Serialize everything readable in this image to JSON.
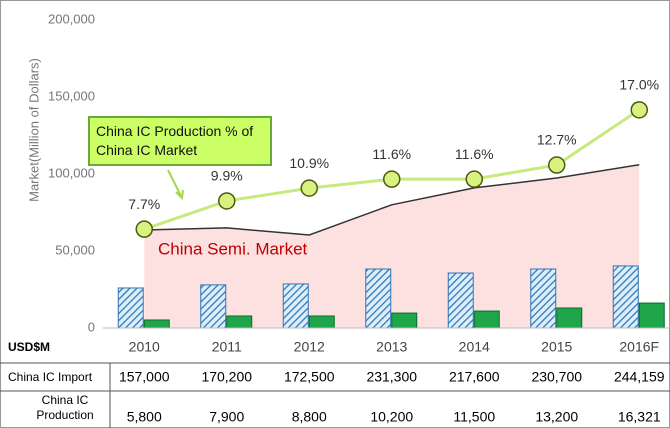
{
  "chart_data": {
    "type": "combo",
    "y_axis_label": "Market(Million of Dollars)",
    "categories": [
      "2010",
      "2011",
      "2012",
      "2013",
      "2014",
      "2015",
      "2016F"
    ],
    "ylim": [
      0,
      200000
    ],
    "yticks": [
      0,
      {
        "value": 50000,
        "label": "50,000"
      },
      {
        "value": 100000,
        "label": "100,000"
      },
      {
        "value": 150000,
        "label": "150,000"
      },
      {
        "value": 200000,
        "label": "200,000"
      }
    ],
    "y2lim": [
      0,
      24
    ],
    "series": [
      {
        "name": "China Semi. Market",
        "type": "area",
        "color": "#fde1e1",
        "values": [
          63600,
          65000,
          60400,
          80000,
          91000,
          97400,
          106000
        ]
      },
      {
        "type": "bar",
        "color": "#2e75b6",
        "values": [
          26000,
          28000,
          28600,
          38300,
          35700,
          38300,
          40300
        ]
      },
      {
        "type": "bar",
        "color": "#1fa64a",
        "values": [
          5200,
          7800,
          7800,
          9700,
          11000,
          13000,
          16200
        ]
      },
      {
        "name": "China IC Production % of China IC Market",
        "type": "line",
        "axis": "y2",
        "color": "#c8ea7c",
        "values": [
          7.7,
          9.9,
          10.9,
          11.6,
          11.6,
          12.7,
          17.0
        ],
        "value_labels": [
          "7.7%",
          "9.9%",
          "10.9%",
          "11.6%",
          "11.6%",
          "12.7%",
          "17.0%"
        ]
      }
    ]
  },
  "table": {
    "header": "USD$M",
    "rows": [
      {
        "label": "China IC Import",
        "values": [
          "157,000",
          "170,200",
          "172,500",
          "231,300",
          "217,600",
          "230,700",
          "244,159"
        ]
      },
      {
        "label": "China IC Production",
        "values": [
          "5,800",
          "7,900",
          "8,800",
          "10,200",
          "11,500",
          "13,200",
          "16,321"
        ]
      }
    ]
  }
}
